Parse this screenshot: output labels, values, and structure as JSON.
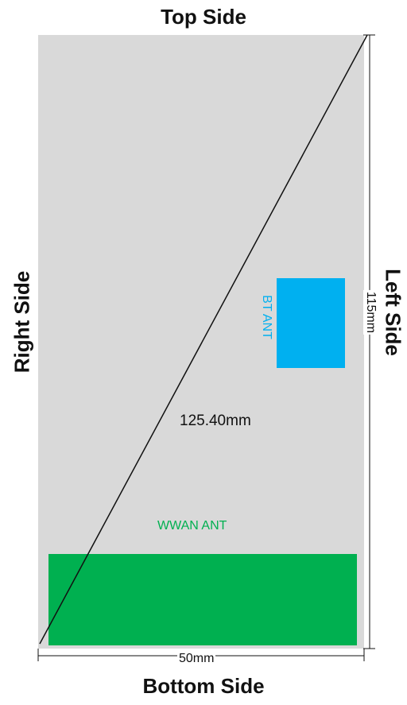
{
  "labels": {
    "top": "Top Side",
    "bottom": "Bottom Side",
    "right": "Right Side",
    "left": "Left Side"
  },
  "antennas": {
    "wwan": "WWAN ANT",
    "bt": "BT ANT"
  },
  "dimensions": {
    "diagonal": "125.40mm",
    "width": "50mm",
    "height": "115mm"
  },
  "colors": {
    "board": "#d9d9d9",
    "wwan": "#00b050",
    "bt": "#00b0f0",
    "line": "#111111"
  }
}
